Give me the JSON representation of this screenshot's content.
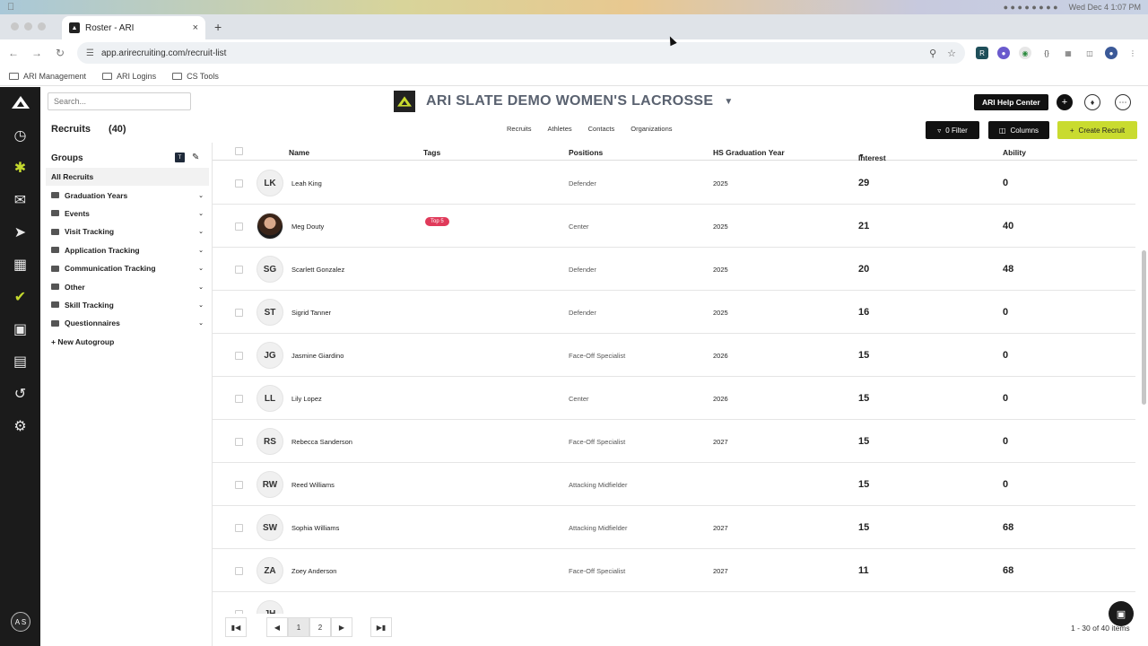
{
  "menubar": {
    "datetime": "Wed Dec 4  1:07 PM"
  },
  "browser": {
    "tab_title": "Roster - ARI",
    "url": "app.arirecruiting.com/recruit-list",
    "bookmarks": [
      "ARI Management",
      "ARI Logins",
      "CS Tools"
    ]
  },
  "app": {
    "search_placeholder": "Search...",
    "team_name": "ARI SLATE DEMO WOMEN'S LACROSSE",
    "help_center": "ARI Help Center",
    "user_initials": "A S",
    "nav_icons": [
      "dashboard-icon",
      "recruits-icon",
      "mail-icon",
      "send-icon",
      "calendar-icon",
      "check-icon",
      "notebook-icon",
      "clipboard-icon",
      "history-icon",
      "settings-icon"
    ],
    "accent": "#c9db2f"
  },
  "subbar": {
    "title": "Recruits",
    "count": "(40)",
    "tabs": [
      "Recruits",
      "Athletes",
      "Contacts",
      "Organizations"
    ],
    "filter_label": "0 Filter",
    "columns_label": "Columns",
    "create_label": "Create Recruit"
  },
  "groups": {
    "title": "Groups",
    "t_badge": "T",
    "items": [
      {
        "label": "All Recruits"
      },
      {
        "label": "Graduation Years"
      },
      {
        "label": "Events"
      },
      {
        "label": "Visit Tracking"
      },
      {
        "label": "Application Tracking"
      },
      {
        "label": "Communication Tracking"
      },
      {
        "label": "Other"
      },
      {
        "label": "Skill Tracking"
      },
      {
        "label": "Questionnaires"
      },
      {
        "label": "+ New Autogroup"
      }
    ]
  },
  "table": {
    "headers": [
      "Name",
      "Tags",
      "Positions",
      "HS Graduation Year",
      "Interest",
      "Ability"
    ],
    "rows": [
      {
        "initials": "LK",
        "name": "Leah King",
        "tag": "",
        "position": "Defender",
        "year": "2025",
        "interest": "29",
        "ability": "0"
      },
      {
        "initials": "",
        "name": "Meg Douty",
        "tag": "Top 5",
        "position": "Center",
        "year": "2025",
        "interest": "21",
        "ability": "40"
      },
      {
        "initials": "SG",
        "name": "Scarlett Gonzalez",
        "tag": "",
        "position": "Defender",
        "year": "2025",
        "interest": "20",
        "ability": "48"
      },
      {
        "initials": "ST",
        "name": "Sigrid Tanner",
        "tag": "",
        "position": "Defender",
        "year": "2025",
        "interest": "16",
        "ability": "0"
      },
      {
        "initials": "JG",
        "name": "Jasmine Giardino",
        "tag": "",
        "position": "Face-Off Specialist",
        "year": "2026",
        "interest": "15",
        "ability": "0"
      },
      {
        "initials": "LL",
        "name": "Lily Lopez",
        "tag": "",
        "position": "Center",
        "year": "2026",
        "interest": "15",
        "ability": "0"
      },
      {
        "initials": "RS",
        "name": "Rebecca Sanderson",
        "tag": "",
        "position": "Face-Off Specialist",
        "year": "2027",
        "interest": "15",
        "ability": "0"
      },
      {
        "initials": "RW",
        "name": "Reed Williams",
        "tag": "",
        "position": "Attacking Midfielder",
        "year": "",
        "interest": "15",
        "ability": "0"
      },
      {
        "initials": "SW",
        "name": "Sophia Williams",
        "tag": "",
        "position": "Attacking Midfielder",
        "year": "2027",
        "interest": "15",
        "ability": "68"
      },
      {
        "initials": "ZA",
        "name": "Zoey Anderson",
        "tag": "",
        "position": "Face-Off Specialist",
        "year": "2027",
        "interest": "11",
        "ability": "68"
      },
      {
        "initials": "JH",
        "name": "",
        "tag": "",
        "position": "",
        "year": "",
        "interest": "",
        "ability": ""
      }
    ]
  },
  "pager": {
    "pages": [
      "1",
      "2"
    ],
    "info": "1 - 30 of 40 items"
  }
}
